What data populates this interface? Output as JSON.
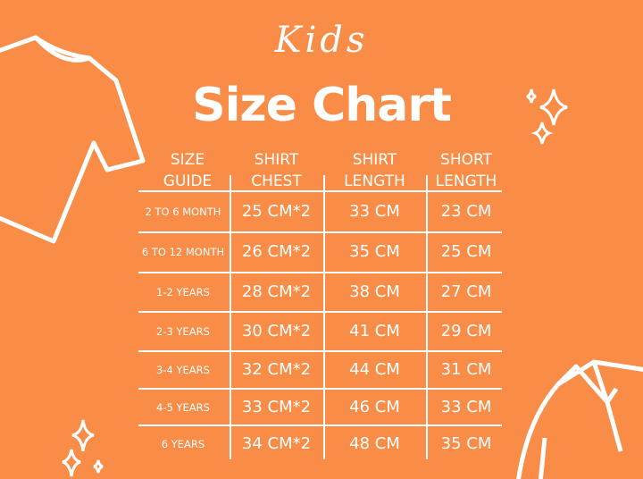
{
  "header": {
    "kids": "Kids",
    "title": "Size Chart"
  },
  "table": {
    "columns": [
      {
        "line1": "SIZE",
        "line2": "GUIDE"
      },
      {
        "line1": "SHIRT",
        "line2": "CHEST"
      },
      {
        "line1": "SHIRT",
        "line2": "LENGTH"
      },
      {
        "line1": "SHORT",
        "line2": "LENGTH"
      }
    ],
    "rows": [
      [
        "2 TO 6 MONTH",
        "25 CM*2",
        "33 CM",
        "23 CM"
      ],
      [
        "6 TO 12 MONTH",
        "26 CM*2",
        "35 CM",
        "25 CM"
      ],
      [
        "1-2 YEARS",
        "28 CM*2",
        "38 CM",
        "27 CM"
      ],
      [
        "2-3 YEARS",
        "30 CM*2",
        "41 CM",
        "29 CM"
      ],
      [
        "3-4 YEARS",
        "32 CM*2",
        "44 CM",
        "31 CM"
      ],
      [
        "4-5 YEARS",
        "33 CM*2",
        "46 CM",
        "33 CM"
      ],
      [
        "6 YEARS",
        "34 CM*2",
        "48 CM",
        "35 CM"
      ]
    ]
  },
  "colors": {
    "background": "#f98c46",
    "foreground": "#ffffff"
  },
  "icons": [
    "tshirt-icon",
    "sparkle-icon",
    "polo-shirt-icon"
  ]
}
